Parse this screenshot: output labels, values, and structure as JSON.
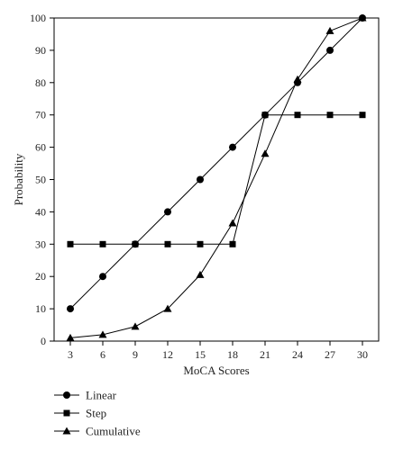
{
  "chart_data": {
    "type": "line",
    "title": "",
    "xlabel": "MoCA Scores",
    "ylabel": "Probability",
    "x": [
      3,
      6,
      9,
      12,
      15,
      18,
      21,
      24,
      27,
      30
    ],
    "xlim": [
      1.5,
      31.5
    ],
    "ylim": [
      0,
      100
    ],
    "yticks": [
      0,
      10,
      20,
      30,
      40,
      50,
      60,
      70,
      80,
      90,
      100
    ],
    "grid": false,
    "legend_position": "bottom-left",
    "series": [
      {
        "name": "Linear",
        "marker": "circle",
        "values": [
          10,
          20,
          30,
          40,
          50,
          60,
          70,
          80,
          90,
          100
        ]
      },
      {
        "name": "Step",
        "marker": "square",
        "values": [
          30,
          30,
          30,
          30,
          30,
          30,
          70,
          70,
          70,
          70
        ]
      },
      {
        "name": "Cumulative",
        "marker": "triangle",
        "values": [
          1,
          2,
          4.5,
          10,
          20.5,
          36.5,
          58,
          81,
          96,
          100
        ]
      }
    ],
    "colors": {
      "line": "#000000",
      "axis": "#000000"
    }
  }
}
